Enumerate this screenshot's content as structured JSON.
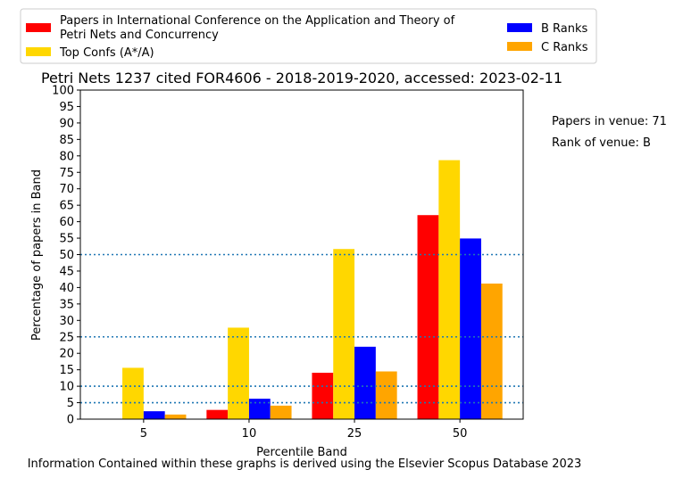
{
  "chart_data": {
    "type": "bar",
    "title": "Petri Nets 1237 cited FOR4606 - 2018-2019-2020, accessed: 2023-02-11",
    "xlabel": "Percentile Band",
    "ylabel": "Percentage of papers in Band",
    "categories": [
      "5",
      "10",
      "25",
      "50"
    ],
    "ylim": [
      0,
      100
    ],
    "yticks": [
      "0",
      "5",
      "10",
      "15",
      "20",
      "25",
      "30",
      "35",
      "40",
      "45",
      "50",
      "55",
      "60",
      "65",
      "70",
      "75",
      "80",
      "85",
      "90",
      "95",
      "100"
    ],
    "reference_lines": [
      5,
      10,
      25,
      50
    ],
    "reference_line_color": "#1f77b4",
    "grid": false,
    "legend_position": "top",
    "series": [
      {
        "name": "Papers in International Conference on the Application and Theory of Petri Nets and Concurrency",
        "color": "#ff0000",
        "values": [
          0,
          2.8,
          14.1,
          62.0
        ]
      },
      {
        "name": "Top Confs (A*/A)",
        "color": "#ffd700",
        "values": [
          15.6,
          27.8,
          51.7,
          78.7
        ]
      },
      {
        "name": "B Ranks",
        "color": "#0000ff",
        "values": [
          2.4,
          6.2,
          22.0,
          54.9
        ]
      },
      {
        "name": "C Ranks",
        "color": "#ffa500",
        "values": [
          1.4,
          4.1,
          14.5,
          41.2
        ]
      }
    ],
    "legend_lines": {
      "venue_line1": "Papers in International Conference on the Application and Theory of",
      "venue_line2": "Petri Nets and Concurrency"
    },
    "annotations": {
      "papers_in_venue": "Papers in venue: 71",
      "rank_of_venue": "Rank of venue: B"
    },
    "footer": "Information Contained within these graphs is derived using the Elsevier Scopus Database 2023"
  }
}
